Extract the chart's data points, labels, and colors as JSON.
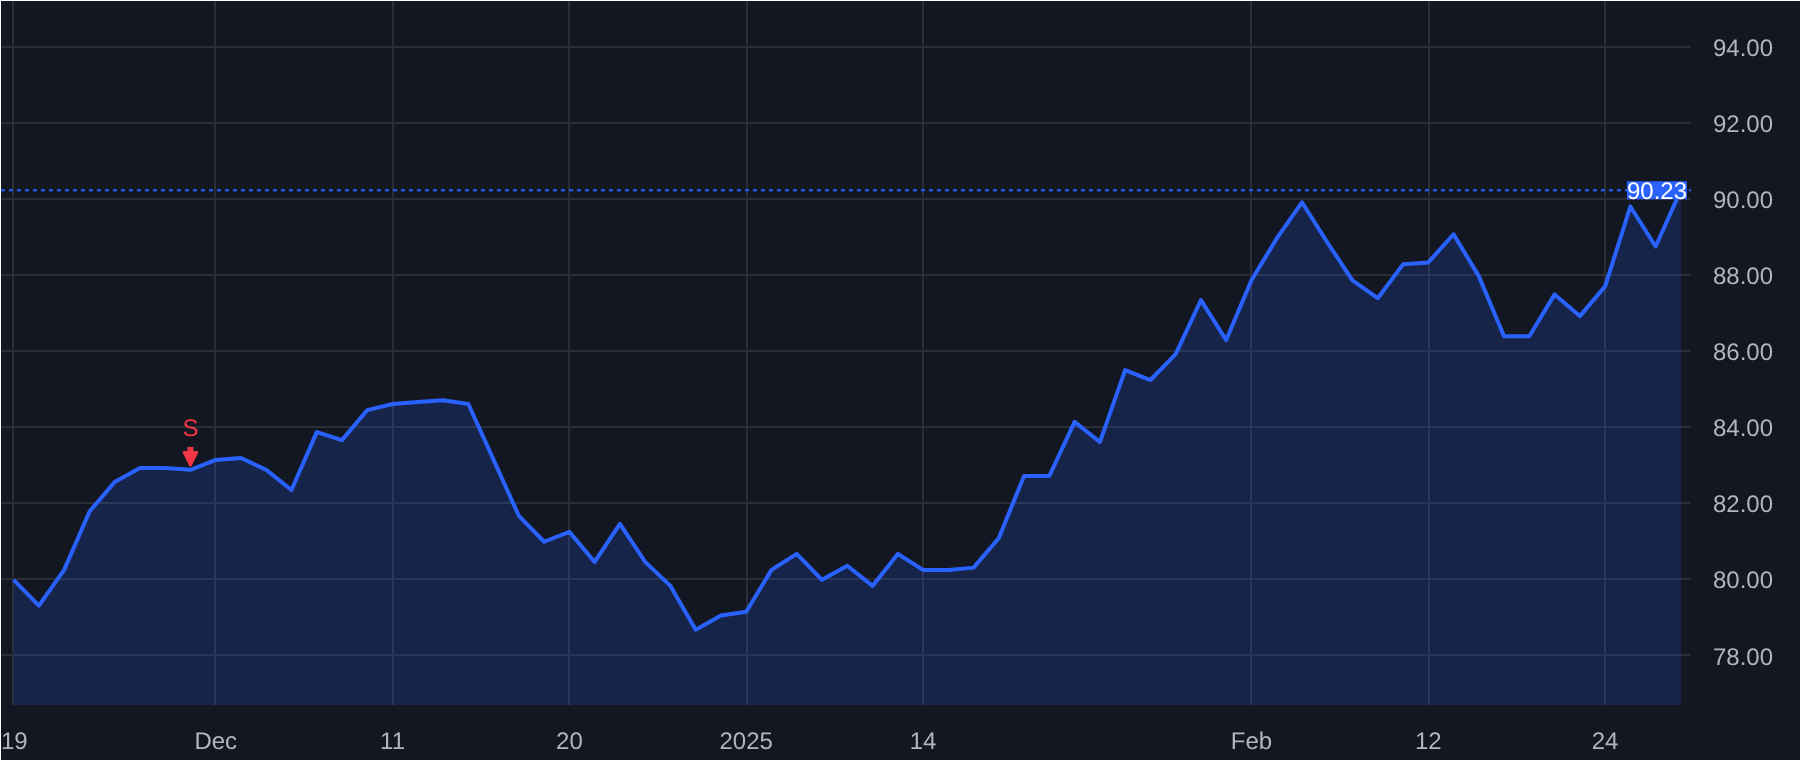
{
  "chart_data": {
    "type": "area",
    "categories": [
      "19",
      null,
      null,
      null,
      null,
      null,
      null,
      null,
      "Dec",
      null,
      null,
      null,
      null,
      null,
      null,
      "11",
      null,
      null,
      null,
      null,
      null,
      null,
      "20",
      null,
      null,
      null,
      null,
      null,
      null,
      "2025",
      null,
      null,
      null,
      null,
      null,
      null,
      "14",
      null,
      null,
      null,
      null,
      null,
      null,
      null,
      null,
      null,
      null,
      null,
      null,
      "Feb",
      null,
      null,
      null,
      null,
      null,
      null,
      "12",
      null,
      null,
      null,
      null,
      null,
      null,
      "24",
      null,
      null,
      null
    ],
    "series": [
      {
        "color": "#2962ff",
        "values": [
          79.99,
          79.31,
          80.25,
          81.78,
          82.56,
          82.93,
          82.93,
          82.88,
          83.14,
          83.19,
          82.88,
          82.35,
          83.87,
          83.66,
          84.45,
          84.61,
          84.66,
          84.71,
          84.61,
          83.14,
          81.67,
          80.99,
          81.25,
          80.46,
          81.46,
          80.46,
          79.83,
          78.68,
          79.05,
          79.15,
          80.25,
          80.67,
          79.99,
          80.36,
          79.83,
          80.67,
          80.25,
          80.25,
          80.31,
          81.09,
          82.72,
          82.72,
          84.14,
          83.61,
          85.5,
          85.24,
          85.92,
          87.34,
          86.29,
          87.86,
          88.96,
          89.91,
          88.86,
          87.86,
          87.39,
          88.28,
          88.33,
          89.07,
          87.97,
          86.39,
          86.39,
          87.49,
          86.92,
          87.7,
          89.8,
          88.75,
          90.23
        ]
      }
    ],
    "ylim": [
      76.7,
      95.2
    ],
    "yticks": [
      {
        "value": 78,
        "label": "78.00"
      },
      {
        "value": 80,
        "label": "80.00"
      },
      {
        "value": 82,
        "label": "82.00"
      },
      {
        "value": 84,
        "label": "84.00"
      },
      {
        "value": 86,
        "label": "86.00"
      },
      {
        "value": 88,
        "label": "88.00"
      },
      {
        "value": 90,
        "label": "90.00"
      },
      {
        "value": 92,
        "label": "92.00"
      },
      {
        "value": 94,
        "label": "94.00"
      }
    ],
    "ref_lines": [
      {
        "axis": "y",
        "value": 90.23,
        "label": "90.23",
        "color": "#2962ff",
        "line_style": "dotted"
      }
    ],
    "annotations": [
      {
        "text": "S",
        "x": "Dec",
        "y": 82.88
      }
    ],
    "grid": true
  }
}
